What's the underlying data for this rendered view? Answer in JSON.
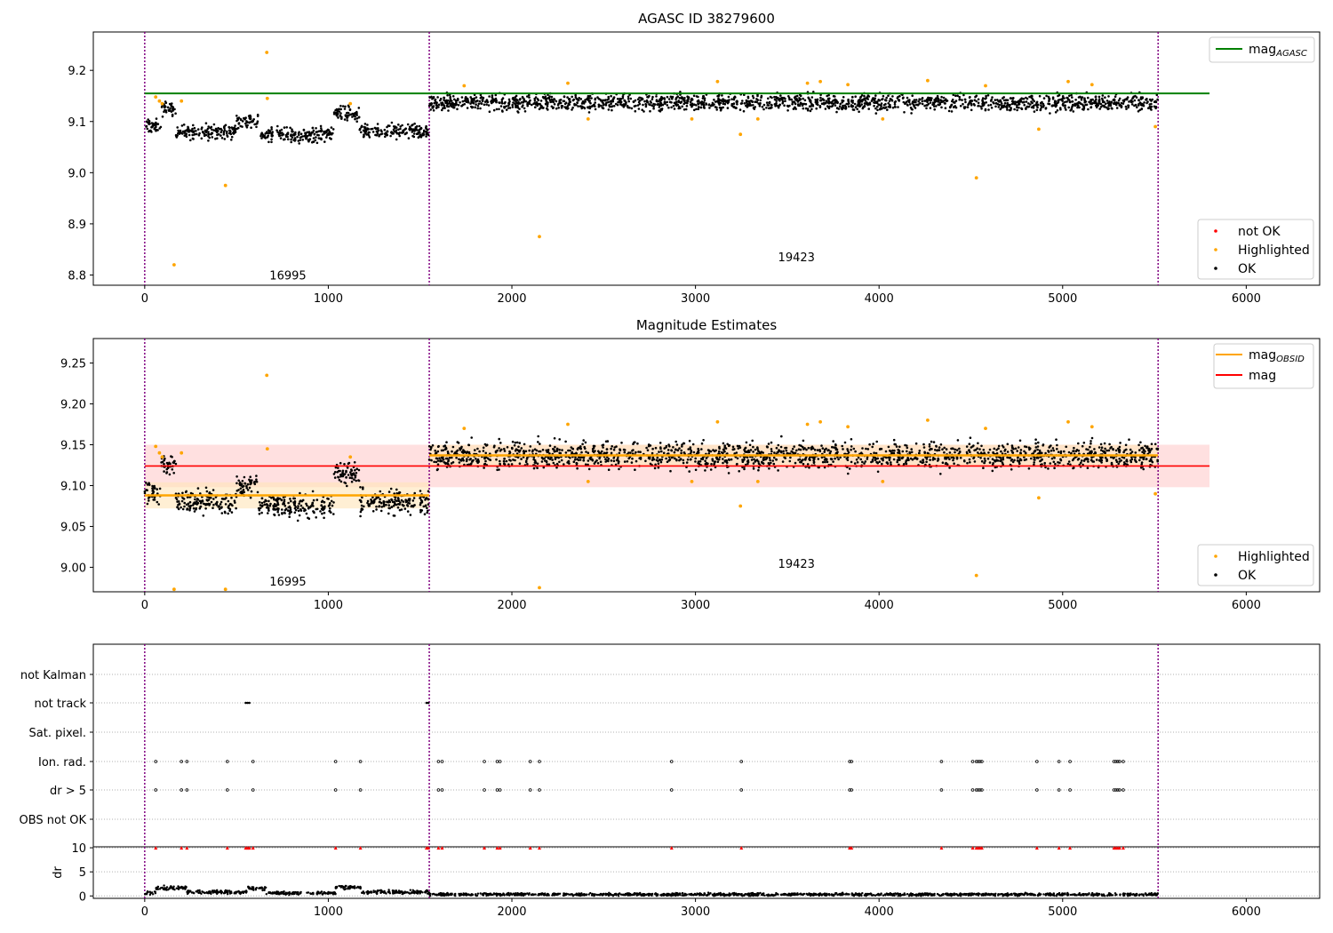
{
  "figure": {
    "title_top": "AGASC ID 38279600",
    "title_middle": "Magnitude Estimates"
  },
  "chart_data": [
    {
      "type": "scatter",
      "title": "AGASC ID 38279600",
      "xlim": [
        -280,
        6400
      ],
      "ylim": [
        8.78,
        9.275
      ],
      "x_ticks": [
        "0",
        "1000",
        "2000",
        "3000",
        "4000",
        "5000",
        "6000"
      ],
      "y_ticks": [
        "8.8",
        "8.9",
        "9.0",
        "9.1",
        "9.2"
      ],
      "obs_boundaries": [
        0,
        1550,
        5520
      ],
      "obsids": [
        {
          "label": "16995",
          "x": 780,
          "y": 8.8
        },
        {
          "label": "19423",
          "x": 3550,
          "y": 8.836
        }
      ],
      "lines": [
        {
          "name": "mag_AGASC",
          "y": 9.155,
          "x": [
            0,
            5800
          ],
          "color": "#008000"
        }
      ],
      "ok_segments": [
        {
          "x": [
            0,
            90
          ],
          "mean": 9.09,
          "spread": 0.012
        },
        {
          "x": [
            90,
            170
          ],
          "mean": 9.125,
          "spread": 0.012
        },
        {
          "x": [
            170,
            500
          ],
          "mean": 9.08,
          "spread": 0.012
        },
        {
          "x": [
            500,
            620
          ],
          "mean": 9.1,
          "spread": 0.012
        },
        {
          "x": [
            620,
            1030
          ],
          "mean": 9.075,
          "spread": 0.012
        },
        {
          "x": [
            1030,
            1170
          ],
          "mean": 9.115,
          "spread": 0.012
        },
        {
          "x": [
            1170,
            1550
          ],
          "mean": 9.08,
          "spread": 0.012
        },
        {
          "x": [
            1550,
            5520
          ],
          "mean": 9.137,
          "spread": 0.014
        }
      ],
      "highlighted_points": [
        [
          60,
          9.148
        ],
        [
          80,
          9.14
        ],
        [
          95,
          9.135
        ],
        [
          160,
          8.82
        ],
        [
          200,
          9.14
        ],
        [
          440,
          8.975
        ],
        [
          665,
          9.235
        ],
        [
          668,
          9.145
        ],
        [
          1120,
          9.135
        ],
        [
          1740,
          9.17
        ],
        [
          2150,
          8.875
        ],
        [
          2305,
          9.175
        ],
        [
          2415,
          9.105
        ],
        [
          2980,
          9.105
        ],
        [
          3120,
          9.178
        ],
        [
          3245,
          9.075
        ],
        [
          3340,
          9.105
        ],
        [
          3610,
          9.175
        ],
        [
          3680,
          9.178
        ],
        [
          3830,
          9.172
        ],
        [
          4020,
          9.105
        ],
        [
          4265,
          9.18
        ],
        [
          4530,
          8.99
        ],
        [
          4580,
          9.17
        ],
        [
          4870,
          9.085
        ],
        [
          5030,
          9.178
        ],
        [
          5160,
          9.172
        ],
        [
          5505,
          9.09
        ]
      ],
      "legend": [
        {
          "label": "not OK",
          "color": "#ff0000"
        },
        {
          "label": "Highlighted",
          "color": "#ffa500"
        },
        {
          "label": "OK",
          "color": "#000000"
        }
      ]
    },
    {
      "type": "scatter",
      "title": "Magnitude Estimates",
      "xlim": [
        -280,
        6400
      ],
      "ylim": [
        8.97,
        9.28
      ],
      "x_ticks": [
        "0",
        "1000",
        "2000",
        "3000",
        "4000",
        "5000",
        "6000"
      ],
      "y_ticks": [
        "9.00",
        "9.05",
        "9.10",
        "9.15",
        "9.20",
        "9.25"
      ],
      "obs_boundaries": [
        0,
        1550,
        5520
      ],
      "obsids": [
        {
          "label": "16995",
          "x": 780,
          "y": 8.983
        },
        {
          "label": "19423",
          "x": 3550,
          "y": 9.005
        }
      ],
      "mag": {
        "y": 9.124,
        "band": [
          9.098,
          9.15
        ],
        "x": [
          0,
          5800
        ],
        "color": "#ff0000"
      },
      "mag_obsid": [
        {
          "x": [
            0,
            1550
          ],
          "y": 9.088,
          "band": [
            9.072,
            9.104
          ]
        },
        {
          "x": [
            1550,
            5520
          ],
          "y": 9.137,
          "band": [
            9.124,
            9.15
          ]
        }
      ],
      "ok_segments": [
        {
          "x": [
            0,
            90
          ],
          "mean": 9.09,
          "spread": 0.012
        },
        {
          "x": [
            90,
            170
          ],
          "mean": 9.125,
          "spread": 0.012
        },
        {
          "x": [
            170,
            500
          ],
          "mean": 9.08,
          "spread": 0.012
        },
        {
          "x": [
            500,
            620
          ],
          "mean": 9.1,
          "spread": 0.012
        },
        {
          "x": [
            620,
            1030
          ],
          "mean": 9.075,
          "spread": 0.012
        },
        {
          "x": [
            1030,
            1170
          ],
          "mean": 9.115,
          "spread": 0.012
        },
        {
          "x": [
            1170,
            1550
          ],
          "mean": 9.08,
          "spread": 0.012
        },
        {
          "x": [
            1550,
            5520
          ],
          "mean": 9.137,
          "spread": 0.014
        }
      ],
      "highlighted_points": [
        [
          60,
          9.148
        ],
        [
          80,
          9.14
        ],
        [
          95,
          9.135
        ],
        [
          160,
          8.973
        ],
        [
          200,
          9.14
        ],
        [
          440,
          8.973
        ],
        [
          665,
          9.235
        ],
        [
          668,
          9.145
        ],
        [
          1120,
          9.135
        ],
        [
          1740,
          9.17
        ],
        [
          2150,
          8.975
        ],
        [
          2305,
          9.175
        ],
        [
          2415,
          9.105
        ],
        [
          2980,
          9.105
        ],
        [
          3120,
          9.178
        ],
        [
          3245,
          9.075
        ],
        [
          3340,
          9.105
        ],
        [
          3610,
          9.175
        ],
        [
          3680,
          9.178
        ],
        [
          3830,
          9.172
        ],
        [
          4020,
          9.105
        ],
        [
          4265,
          9.18
        ],
        [
          4530,
          8.99
        ],
        [
          4580,
          9.17
        ],
        [
          4870,
          9.085
        ],
        [
          5030,
          9.178
        ],
        [
          5160,
          9.172
        ],
        [
          5505,
          9.09
        ]
      ],
      "legend_lines": [
        {
          "label": "mag_OBSID",
          "color": "#ffa500"
        },
        {
          "label": "mag",
          "color": "#ff0000"
        }
      ],
      "legend": [
        {
          "label": "Highlighted",
          "color": "#ffa500"
        },
        {
          "label": "OK",
          "color": "#000000"
        }
      ]
    },
    {
      "type": "scatter",
      "title": "",
      "xlim": [
        -280,
        6400
      ],
      "x_ticks": [
        "0",
        "1000",
        "2000",
        "3000",
        "4000",
        "5000",
        "6000"
      ],
      "flag_labels": [
        "not Kalman",
        "not track",
        "Sat. pixel.",
        "Ion. rad.",
        "dr > 5",
        "OBS not OK"
      ],
      "obs_boundaries": [
        0,
        1550,
        5520
      ],
      "not_track_x": [
        550,
        560,
        570,
        1535,
        1545
      ],
      "flag_event_x": [
        60,
        200,
        230,
        450,
        590,
        1040,
        1175,
        1600,
        1620,
        1850,
        1920,
        1935,
        2100,
        2150,
        2870,
        3250,
        3840,
        3850,
        4340,
        4510,
        4530,
        4540,
        4550,
        4560,
        4860,
        4980,
        5040,
        5280,
        5290,
        5300,
        5310,
        5330
      ],
      "dr_ylabel": "dr",
      "dr_ylim": [
        -0.5,
        10.2
      ],
      "dr_ticks": [
        "0",
        "5",
        "10"
      ],
      "dr_segments": [
        {
          "x": [
            0,
            60
          ],
          "mean": 0.6,
          "spread": 0.35
        },
        {
          "x": [
            60,
            230
          ],
          "mean": 1.6,
          "spread": 0.4
        },
        {
          "x": [
            230,
            560
          ],
          "mean": 0.8,
          "spread": 0.3
        },
        {
          "x": [
            560,
            660
          ],
          "mean": 1.6,
          "spread": 0.4
        },
        {
          "x": [
            660,
            1040
          ],
          "mean": 0.6,
          "spread": 0.3
        },
        {
          "x": [
            1040,
            1180
          ],
          "mean": 1.8,
          "spread": 0.3
        },
        {
          "x": [
            1180,
            1550
          ],
          "mean": 0.8,
          "spread": 0.3
        },
        {
          "x": [
            1550,
            5520
          ],
          "mean": 0.3,
          "spread": 0.25
        }
      ],
      "dr_clipped_y": 10
    }
  ],
  "colors": {
    "ok": "#000000",
    "highlighted": "#ffa500",
    "not_ok": "#ff0000",
    "agasc_line": "#008000",
    "boundary": "#800080",
    "mag_band": "#ffd6d6",
    "obsid_band": "#ffe4b8"
  }
}
